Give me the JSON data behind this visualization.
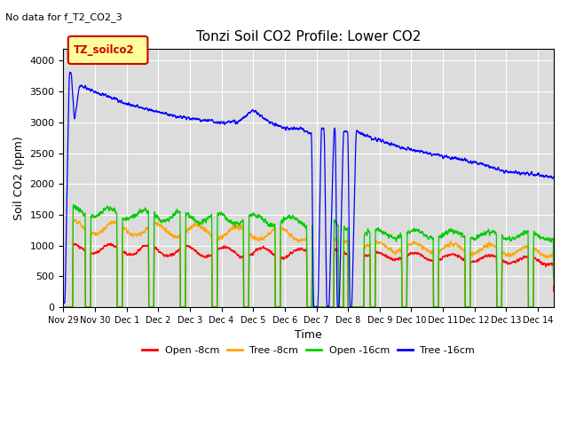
{
  "title": "Tonzi Soil CO2 Profile: Lower CO2",
  "suptitle": "No data for f_T2_CO2_3",
  "ylabel": "Soil CO2 (ppm)",
  "xlabel": "Time",
  "legend_label": "TZ_soilco2",
  "ylim": [
    0,
    4200
  ],
  "series_labels": [
    "Open -8cm",
    "Tree -8cm",
    "Open -16cm",
    "Tree -16cm"
  ],
  "series_colors": [
    "#ff0000",
    "#ffa500",
    "#00cc00",
    "#0000ff"
  ],
  "background_color": "#dcdcdc",
  "xtick_labels": [
    "Nov 29",
    "Nov 30",
    "Dec 1",
    "Dec 2",
    "Dec 3",
    "Dec 4",
    "Dec 5",
    "Dec 6",
    "Dec 7",
    "Dec 8",
    "Dec 9",
    "Dec 10",
    "Dec 11",
    "Dec 12",
    "Dec 13",
    "Dec 14"
  ],
  "n_days": 15.5
}
